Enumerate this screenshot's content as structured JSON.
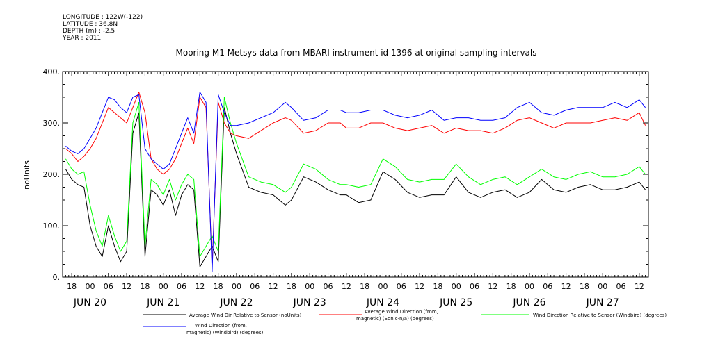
{
  "header": {
    "longitude": "LONGITUDE : 122W(-122)",
    "latitude": "LATITUDE : 36.8N",
    "depth": "DEPTH (m) : -2.5",
    "year": "YEAR : 2011"
  },
  "chart_data": {
    "type": "line",
    "title": "Mooring M1 Metsys data from MBARI instrument id 1396 at original sampling intervals",
    "ylabel": "noUnits",
    "ylim": [
      0,
      400
    ],
    "yticks": [
      0,
      100,
      200,
      300,
      400
    ],
    "ytick_labels": [
      "0.",
      "100.",
      "200.",
      "300.",
      "400."
    ],
    "xlim_hours": [
      -9,
      183
    ],
    "hour_ticks": [
      {
        "t": -6,
        "label": "18"
      },
      {
        "t": 0,
        "label": "00"
      },
      {
        "t": 6,
        "label": "06"
      },
      {
        "t": 12,
        "label": "12"
      },
      {
        "t": 18,
        "label": "18"
      },
      {
        "t": 24,
        "label": "00"
      },
      {
        "t": 30,
        "label": "06"
      },
      {
        "t": 36,
        "label": "12"
      },
      {
        "t": 42,
        "label": "18"
      },
      {
        "t": 48,
        "label": "00"
      },
      {
        "t": 54,
        "label": "06"
      },
      {
        "t": 60,
        "label": "12"
      },
      {
        "t": 66,
        "label": "18"
      },
      {
        "t": 72,
        "label": "00"
      },
      {
        "t": 78,
        "label": "06"
      },
      {
        "t": 84,
        "label": "12"
      },
      {
        "t": 90,
        "label": "18"
      },
      {
        "t": 96,
        "label": "00"
      },
      {
        "t": 102,
        "label": "06"
      },
      {
        "t": 108,
        "label": "12"
      },
      {
        "t": 114,
        "label": "18"
      },
      {
        "t": 120,
        "label": "00"
      },
      {
        "t": 126,
        "label": "06"
      },
      {
        "t": 132,
        "label": "12"
      },
      {
        "t": 138,
        "label": "18"
      },
      {
        "t": 144,
        "label": "00"
      },
      {
        "t": 150,
        "label": "06"
      },
      {
        "t": 156,
        "label": "12"
      },
      {
        "t": 162,
        "label": "18"
      },
      {
        "t": 168,
        "label": "00"
      },
      {
        "t": 174,
        "label": "06"
      },
      {
        "t": 180,
        "label": "12"
      }
    ],
    "day_labels": [
      {
        "t": 0,
        "label": "JUN 20"
      },
      {
        "t": 24,
        "label": "JUN 21"
      },
      {
        "t": 48,
        "label": "JUN 22"
      },
      {
        "t": 72,
        "label": "JUN 23"
      },
      {
        "t": 96,
        "label": "JUN 24"
      },
      {
        "t": 120,
        "label": "JUN 25"
      },
      {
        "t": 144,
        "label": "JUN 26"
      },
      {
        "t": 168,
        "label": "JUN 27"
      }
    ],
    "series": [
      {
        "name": "Average Wind Dir Relative to Sensor (noUnits)",
        "color": "#000000",
        "t": [
          -8,
          -6,
          -4,
          -2,
          0,
          2,
          4,
          6,
          8,
          10,
          12,
          14,
          16,
          18,
          20,
          22,
          24,
          26,
          28,
          30,
          32,
          34,
          36,
          38,
          40,
          42,
          44,
          46,
          48,
          52,
          56,
          60,
          64,
          66,
          70,
          74,
          78,
          82,
          84,
          88,
          92,
          96,
          100,
          104,
          108,
          112,
          116,
          120,
          124,
          128,
          132,
          136,
          140,
          144,
          148,
          152,
          156,
          160,
          164,
          168,
          172,
          176,
          180,
          182
        ],
        "y": [
          210,
          190,
          180,
          175,
          100,
          60,
          40,
          100,
          60,
          30,
          50,
          280,
          320,
          40,
          170,
          160,
          140,
          170,
          120,
          160,
          180,
          170,
          20,
          40,
          60,
          30,
          330,
          280,
          240,
          175,
          165,
          160,
          140,
          150,
          195,
          185,
          170,
          160,
          160,
          145,
          150,
          205,
          190,
          165,
          155,
          160,
          160,
          195,
          165,
          155,
          165,
          170,
          155,
          165,
          190,
          170,
          165,
          175,
          180,
          170,
          170,
          175,
          185,
          170
        ]
      },
      {
        "name": "Average Wind Direction (from, magnetic) (Sonic-n/a) (degrees)",
        "color": "#ff0000",
        "t": [
          -8,
          -6,
          -4,
          -2,
          0,
          2,
          4,
          6,
          8,
          10,
          12,
          14,
          16,
          18,
          20,
          22,
          24,
          26,
          28,
          30,
          32,
          34,
          36,
          38,
          40,
          42,
          44,
          46,
          48,
          52,
          56,
          60,
          64,
          66,
          70,
          74,
          78,
          82,
          84,
          88,
          92,
          96,
          100,
          104,
          108,
          112,
          116,
          120,
          124,
          128,
          132,
          136,
          140,
          144,
          148,
          152,
          156,
          160,
          164,
          168,
          172,
          176,
          180,
          182
        ],
        "y": [
          250,
          240,
          225,
          235,
          250,
          270,
          300,
          330,
          320,
          310,
          300,
          330,
          360,
          320,
          230,
          210,
          200,
          210,
          230,
          260,
          290,
          260,
          350,
          330,
          20,
          340,
          300,
          280,
          275,
          270,
          285,
          300,
          310,
          305,
          280,
          285,
          300,
          300,
          290,
          290,
          300,
          300,
          290,
          285,
          290,
          295,
          280,
          290,
          285,
          285,
          280,
          290,
          305,
          310,
          300,
          290,
          300,
          300,
          300,
          305,
          310,
          305,
          320,
          295
        ]
      },
      {
        "name": "Wind Direction Relative to Sensor (Windbird) (degrees)",
        "color": "#00ff00",
        "t": [
          -8,
          -6,
          -4,
          -2,
          0,
          2,
          4,
          6,
          8,
          10,
          12,
          14,
          16,
          18,
          20,
          22,
          24,
          26,
          28,
          30,
          32,
          34,
          36,
          38,
          40,
          42,
          44,
          46,
          48,
          52,
          56,
          60,
          64,
          66,
          70,
          74,
          78,
          82,
          84,
          88,
          92,
          96,
          100,
          104,
          108,
          112,
          116,
          120,
          124,
          128,
          132,
          136,
          140,
          144,
          148,
          152,
          156,
          160,
          164,
          168,
          172,
          176,
          180,
          182
        ],
        "y": [
          230,
          210,
          200,
          205,
          140,
          90,
          60,
          120,
          80,
          50,
          70,
          300,
          340,
          60,
          190,
          180,
          160,
          190,
          150,
          180,
          200,
          190,
          40,
          60,
          80,
          50,
          350,
          300,
          260,
          195,
          185,
          180,
          165,
          175,
          220,
          210,
          190,
          180,
          180,
          175,
          180,
          230,
          215,
          190,
          185,
          190,
          190,
          220,
          195,
          180,
          190,
          195,
          180,
          195,
          210,
          195,
          190,
          200,
          205,
          195,
          195,
          200,
          215,
          200
        ]
      },
      {
        "name": "Wind Direction (from, magnetic) (Windbird) (degrees)",
        "color": "#0000ff",
        "t": [
          -8,
          -6,
          -4,
          -2,
          0,
          2,
          4,
          6,
          8,
          10,
          12,
          14,
          16,
          18,
          20,
          22,
          24,
          26,
          28,
          30,
          32,
          34,
          36,
          38,
          40,
          42,
          44,
          46,
          48,
          52,
          56,
          60,
          64,
          66,
          70,
          74,
          78,
          82,
          84,
          88,
          92,
          96,
          100,
          104,
          108,
          112,
          116,
          120,
          124,
          128,
          132,
          136,
          140,
          144,
          148,
          152,
          156,
          160,
          164,
          168,
          172,
          176,
          180,
          182
        ],
        "y": [
          255,
          245,
          240,
          250,
          270,
          290,
          320,
          350,
          345,
          330,
          320,
          350,
          355,
          250,
          230,
          220,
          210,
          220,
          250,
          280,
          310,
          280,
          360,
          340,
          10,
          355,
          320,
          295,
          295,
          300,
          310,
          320,
          340,
          330,
          305,
          310,
          325,
          325,
          320,
          320,
          325,
          325,
          315,
          310,
          315,
          325,
          305,
          310,
          310,
          305,
          305,
          310,
          330,
          340,
          320,
          315,
          325,
          330,
          330,
          330,
          340,
          330,
          345,
          330
        ]
      }
    ]
  }
}
